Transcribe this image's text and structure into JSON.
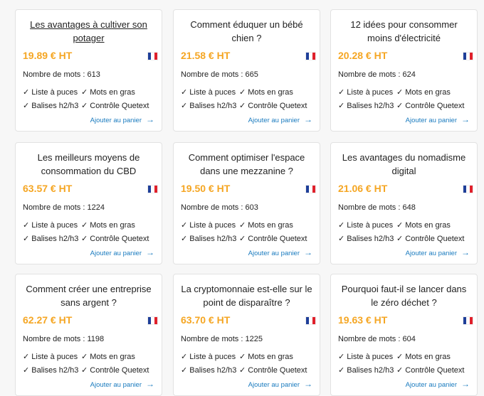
{
  "cards": [
    {
      "title": "Les avantages à cultiver son potager",
      "price": "19.89 € HT",
      "words": "Nombre de mots : 613"
    },
    {
      "title": "Comment éduquer un bébé chien ?",
      "price": "21.58 € HT",
      "words": "Nombre de mots : 665"
    },
    {
      "title": "12 idées pour consommer moins d'électricité",
      "price": "20.28 € HT",
      "words": "Nombre de mots : 624"
    },
    {
      "title": "Les meilleurs moyens de consommation du CBD",
      "price": "63.57 € HT",
      "words": "Nombre de mots : 1224"
    },
    {
      "title": "Comment optimiser l'espace dans une mezzanine ?",
      "price": "19.50 € HT",
      "words": "Nombre de mots : 603"
    },
    {
      "title": "Les avantages du nomadisme digital",
      "price": "21.06 € HT",
      "words": "Nombre de mots : 648"
    },
    {
      "title": "Comment créer une entreprise sans argent ?",
      "price": "62.27 € HT",
      "words": "Nombre de mots : 1198"
    },
    {
      "title": "La cryptomonnaie est-elle sur le point de disparaître ?",
      "price": "63.70 € HT",
      "words": "Nombre de mots : 1225"
    },
    {
      "title": "Pourquoi faut-il se lancer dans le zéro déchet ?",
      "price": "19.63 € HT",
      "words": "Nombre de mots : 604"
    }
  ],
  "features": [
    "✓ Liste à puces",
    "✓ Mots en gras",
    "✓ Balises h2/h3",
    "✓ Contrôle Quetext"
  ],
  "add_to_cart": "Ajouter au panier"
}
